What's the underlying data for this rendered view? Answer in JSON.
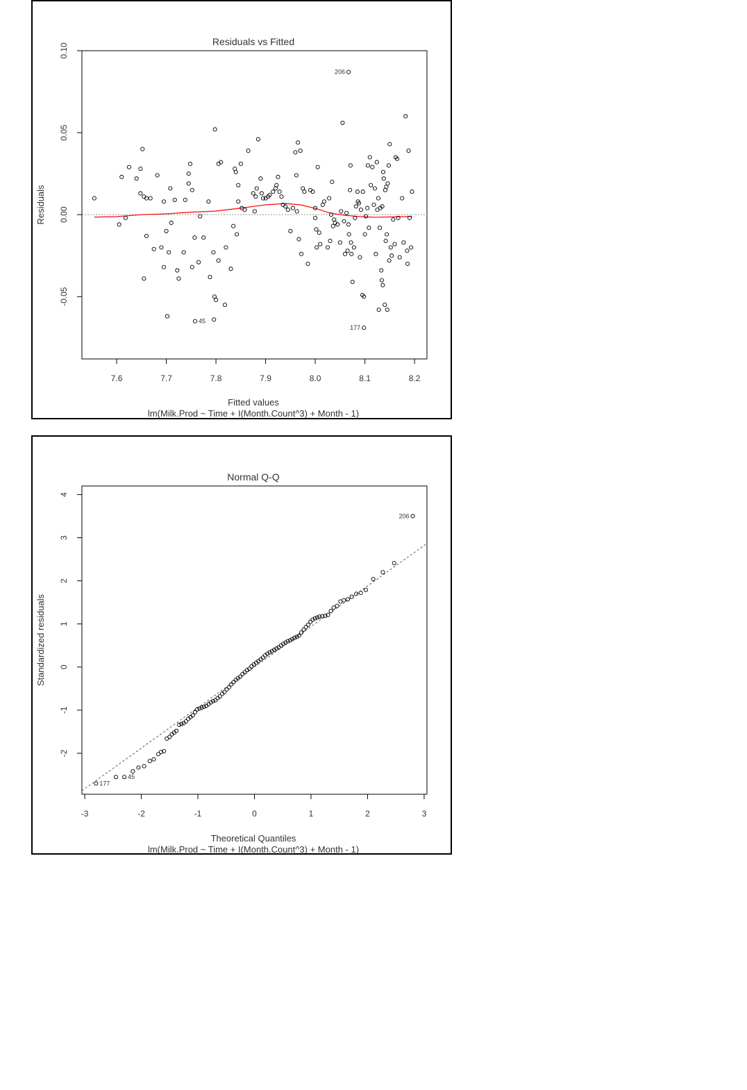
{
  "chart_data": [
    {
      "type": "scatter",
      "title": "Residuals vs Fitted",
      "xlabel": "Fitted values",
      "ylabel": "Residuals",
      "subtitle": "lm(Milk.Prod ~ Time + I(Month.Count^3) + Month - 1)",
      "xlim": [
        7.53,
        8.225
      ],
      "ylim": [
        -0.088,
        0.1
      ],
      "xticks": [
        7.6,
        7.7,
        7.8,
        7.9,
        8.0,
        8.1,
        8.2
      ],
      "xtick_labels": [
        "7.6",
        "7.7",
        "7.8",
        "7.9",
        "8.0",
        "8.1",
        "8.2"
      ],
      "yticks": [
        -0.05,
        0.0,
        0.05,
        0.1
      ],
      "ytick_labels": [
        "-0.05",
        "0.00",
        "0.05",
        "0.10"
      ],
      "reference_line": {
        "y": 0,
        "style": "dotted",
        "color": "#999999"
      },
      "smooth_color": "#ff0000",
      "point_color": "#000000",
      "points": [
        [
          7.555,
          0.01
        ],
        [
          7.605,
          -0.006
        ],
        [
          7.61,
          0.023
        ],
        [
          7.618,
          -0.002
        ],
        [
          7.625,
          0.029
        ],
        [
          7.64,
          0.022
        ],
        [
          7.648,
          0.028
        ],
        [
          7.648,
          0.013
        ],
        [
          7.652,
          0.04
        ],
        [
          7.655,
          0.011
        ],
        [
          7.655,
          -0.039
        ],
        [
          7.66,
          0.01
        ],
        [
          7.66,
          -0.013
        ],
        [
          7.668,
          0.01
        ],
        [
          7.675,
          -0.021
        ],
        [
          7.682,
          0.024
        ],
        [
          7.69,
          -0.02
        ],
        [
          7.695,
          0.008
        ],
        [
          7.695,
          -0.032
        ],
        [
          7.7,
          -0.01
        ],
        [
          7.702,
          -0.062
        ],
        [
          7.705,
          -0.023
        ],
        [
          7.708,
          0.016
        ],
        [
          7.71,
          -0.005
        ],
        [
          7.717,
          0.009
        ],
        [
          7.722,
          -0.034
        ],
        [
          7.725,
          -0.039
        ],
        [
          7.735,
          -0.023
        ],
        [
          7.738,
          0.009
        ],
        [
          7.745,
          0.019
        ],
        [
          7.745,
          0.025
        ],
        [
          7.748,
          0.031
        ],
        [
          7.752,
          0.015
        ],
        [
          7.752,
          -0.032
        ],
        [
          7.757,
          -0.014
        ],
        [
          7.758,
          -0.065
        ],
        [
          7.765,
          -0.029
        ],
        [
          7.768,
          -0.001
        ],
        [
          7.775,
          -0.014
        ],
        [
          7.785,
          0.008
        ],
        [
          7.788,
          -0.038
        ],
        [
          7.795,
          -0.023
        ],
        [
          7.796,
          -0.064
        ],
        [
          7.797,
          -0.05
        ],
        [
          7.798,
          0.052
        ],
        [
          7.8,
          -0.052
        ],
        [
          7.805,
          0.031
        ],
        [
          7.805,
          -0.028
        ],
        [
          7.81,
          0.032
        ],
        [
          7.818,
          -0.055
        ],
        [
          7.82,
          -0.02
        ],
        [
          7.83,
          -0.033
        ],
        [
          7.835,
          -0.007
        ],
        [
          7.838,
          0.028
        ],
        [
          7.84,
          0.026
        ],
        [
          7.842,
          -0.012
        ],
        [
          7.845,
          0.018
        ],
        [
          7.845,
          0.008
        ],
        [
          7.85,
          0.031
        ],
        [
          7.852,
          0.004
        ],
        [
          7.858,
          0.003
        ],
        [
          7.865,
          0.039
        ],
        [
          7.875,
          0.013
        ],
        [
          7.878,
          0.002
        ],
        [
          7.88,
          0.011
        ],
        [
          7.882,
          0.016
        ],
        [
          7.885,
          0.046
        ],
        [
          7.89,
          0.022
        ],
        [
          7.892,
          0.013
        ],
        [
          7.895,
          0.01
        ],
        [
          7.9,
          0.01
        ],
        [
          7.905,
          0.011
        ],
        [
          7.908,
          0.012
        ],
        [
          7.915,
          0.014
        ],
        [
          7.92,
          0.016
        ],
        [
          7.922,
          0.018
        ],
        [
          7.925,
          0.023
        ],
        [
          7.928,
          0.014
        ],
        [
          7.932,
          0.011
        ],
        [
          7.935,
          0.006
        ],
        [
          7.94,
          0.005
        ],
        [
          7.945,
          0.003
        ],
        [
          7.95,
          -0.01
        ],
        [
          7.955,
          0.004
        ],
        [
          7.96,
          0.038
        ],
        [
          7.962,
          0.024
        ],
        [
          7.963,
          0.002
        ],
        [
          7.965,
          0.044
        ],
        [
          7.967,
          -0.015
        ],
        [
          7.97,
          0.039
        ],
        [
          7.972,
          -0.024
        ],
        [
          7.975,
          0.016
        ],
        [
          7.978,
          0.014
        ],
        [
          7.985,
          -0.03
        ],
        [
          7.99,
          0.015
        ],
        [
          7.995,
          0.014
        ],
        [
          8.0,
          0.004
        ],
        [
          8.0,
          -0.002
        ],
        [
          8.002,
          -0.009
        ],
        [
          8.003,
          -0.02
        ],
        [
          8.005,
          0.029
        ],
        [
          8.008,
          -0.011
        ],
        [
          8.01,
          -0.018
        ],
        [
          8.015,
          0.006
        ],
        [
          8.018,
          0.008
        ],
        [
          8.025,
          -0.02
        ],
        [
          8.028,
          0.01
        ],
        [
          8.03,
          -0.016
        ],
        [
          8.032,
          0.0
        ],
        [
          8.034,
          0.02
        ],
        [
          8.036,
          -0.007
        ],
        [
          8.038,
          -0.003
        ],
        [
          8.04,
          -0.005
        ],
        [
          8.045,
          -0.006
        ],
        [
          8.05,
          -0.017
        ],
        [
          8.052,
          0.002
        ],
        [
          8.055,
          0.056
        ],
        [
          8.058,
          -0.004
        ],
        [
          8.06,
          -0.024
        ],
        [
          8.063,
          0.001
        ],
        [
          8.065,
          -0.022
        ],
        [
          8.067,
          -0.006
        ],
        [
          8.068,
          -0.012
        ],
        [
          8.07,
          0.015
        ],
        [
          8.071,
          0.03
        ],
        [
          8.072,
          -0.017
        ],
        [
          8.073,
          -0.024
        ],
        [
          8.075,
          -0.041
        ],
        [
          8.078,
          -0.02
        ],
        [
          8.08,
          -0.002
        ],
        [
          8.082,
          0.005
        ],
        [
          8.085,
          0.014
        ],
        [
          8.086,
          0.008
        ],
        [
          8.088,
          0.007
        ],
        [
          8.09,
          -0.026
        ],
        [
          8.092,
          0.003
        ],
        [
          8.095,
          -0.049
        ],
        [
          8.096,
          0.014
        ],
        [
          8.098,
          -0.05
        ],
        [
          8.1,
          -0.012
        ],
        [
          8.102,
          -0.001
        ],
        [
          8.105,
          0.004
        ],
        [
          8.106,
          0.03
        ],
        [
          8.108,
          -0.008
        ],
        [
          8.11,
          0.035
        ],
        [
          8.112,
          0.018
        ],
        [
          8.115,
          0.029
        ],
        [
          8.118,
          0.006
        ],
        [
          8.12,
          0.016
        ],
        [
          8.122,
          -0.024
        ],
        [
          8.124,
          0.032
        ],
        [
          8.125,
          0.003
        ],
        [
          8.127,
          0.01
        ],
        [
          8.128,
          -0.058
        ],
        [
          8.13,
          -0.008
        ],
        [
          8.131,
          0.004
        ],
        [
          8.133,
          -0.034
        ],
        [
          8.134,
          -0.04
        ],
        [
          8.135,
          0.005
        ],
        [
          8.136,
          -0.043
        ],
        [
          8.137,
          0.026
        ],
        [
          8.138,
          0.022
        ],
        [
          8.14,
          -0.055
        ],
        [
          8.141,
          0.015
        ],
        [
          8.142,
          -0.016
        ],
        [
          8.143,
          0.017
        ],
        [
          8.144,
          -0.012
        ],
        [
          8.145,
          -0.058
        ],
        [
          8.146,
          0.019
        ],
        [
          8.148,
          0.03
        ],
        [
          8.149,
          -0.028
        ],
        [
          8.15,
          0.043
        ],
        [
          8.152,
          -0.02
        ],
        [
          8.154,
          -0.025
        ],
        [
          8.157,
          -0.003
        ],
        [
          8.16,
          -0.018
        ],
        [
          8.162,
          0.035
        ],
        [
          8.165,
          0.034
        ],
        [
          8.167,
          -0.002
        ],
        [
          8.17,
          -0.026
        ],
        [
          8.175,
          0.01
        ],
        [
          8.178,
          -0.017
        ],
        [
          8.182,
          0.06
        ],
        [
          8.185,
          -0.022
        ],
        [
          8.186,
          -0.03
        ],
        [
          8.188,
          0.039
        ],
        [
          8.19,
          -0.002
        ],
        [
          8.193,
          -0.02
        ],
        [
          8.195,
          0.014
        ],
        [
          8.067,
          0.087
        ],
        [
          8.098,
          -0.069
        ]
      ],
      "smooth": [
        [
          7.555,
          -0.0015
        ],
        [
          7.6,
          -0.0012
        ],
        [
          7.65,
          0.0
        ],
        [
          7.7,
          0.0005
        ],
        [
          7.75,
          0.0015
        ],
        [
          7.8,
          0.0022
        ],
        [
          7.85,
          0.004
        ],
        [
          7.9,
          0.006
        ],
        [
          7.94,
          0.0068
        ],
        [
          7.97,
          0.006
        ],
        [
          8.0,
          0.0038
        ],
        [
          8.03,
          0.001
        ],
        [
          8.06,
          -0.0004
        ],
        [
          8.09,
          -0.0012
        ],
        [
          8.12,
          -0.0016
        ],
        [
          8.15,
          -0.0014
        ],
        [
          8.18,
          -0.0012
        ],
        [
          8.195,
          -0.001
        ]
      ],
      "labels": [
        {
          "text": "206",
          "x": 8.067,
          "y": 0.087,
          "side": "left"
        },
        {
          "text": "45",
          "x": 7.758,
          "y": -0.065,
          "side": "right"
        },
        {
          "text": "177",
          "x": 8.098,
          "y": -0.069,
          "side": "left"
        }
      ]
    },
    {
      "type": "scatter",
      "title": "Normal Q-Q",
      "xlabel": "Theoretical Quantiles",
      "ylabel": "Standardized residuals",
      "subtitle": "lm(Milk.Prod ~ Time + I(Month.Count^3) + Month - 1)",
      "xlim": [
        -3.05,
        3.05
      ],
      "ylim": [
        -2.95,
        4.2
      ],
      "xticks": [
        -3,
        -2,
        -1,
        0,
        1,
        2,
        3
      ],
      "xtick_labels": [
        "-3",
        "-2",
        "-1",
        "0",
        "1",
        "2",
        "3"
      ],
      "yticks": [
        -2,
        -1,
        0,
        1,
        2,
        3,
        4
      ],
      "ytick_labels": [
        "-2",
        "-1",
        "0",
        "1",
        "2",
        "3",
        "4"
      ],
      "reference_line": {
        "slope": 0.94,
        "intercept": 0.0,
        "style": "dashed",
        "color": "#555555"
      },
      "point_color": "#000000",
      "points": [
        [
          -2.8,
          -2.7
        ],
        [
          -2.45,
          -2.55
        ],
        [
          -2.3,
          -2.55
        ],
        [
          -2.15,
          -2.42
        ],
        [
          -2.05,
          -2.33
        ],
        [
          -1.95,
          -2.3
        ],
        [
          -1.85,
          -2.18
        ],
        [
          -1.78,
          -2.14
        ],
        [
          -1.7,
          -2.02
        ],
        [
          -1.65,
          -1.97
        ],
        [
          -1.6,
          -1.95
        ],
        [
          -1.55,
          -1.66
        ],
        [
          -1.5,
          -1.62
        ],
        [
          -1.46,
          -1.56
        ],
        [
          -1.42,
          -1.52
        ],
        [
          -1.38,
          -1.48
        ],
        [
          -1.33,
          -1.34
        ],
        [
          -1.29,
          -1.32
        ],
        [
          -1.25,
          -1.3
        ],
        [
          -1.21,
          -1.26
        ],
        [
          -1.17,
          -1.2
        ],
        [
          -1.13,
          -1.16
        ],
        [
          -1.09,
          -1.12
        ],
        [
          -1.05,
          -1.05
        ],
        [
          -1.01,
          -0.98
        ],
        [
          -0.97,
          -0.96
        ],
        [
          -0.93,
          -0.94
        ],
        [
          -0.89,
          -0.92
        ],
        [
          -0.85,
          -0.9
        ],
        [
          -0.81,
          -0.86
        ],
        [
          -0.77,
          -0.82
        ],
        [
          -0.73,
          -0.79
        ],
        [
          -0.69,
          -0.77
        ],
        [
          -0.65,
          -0.72
        ],
        [
          -0.61,
          -0.68
        ],
        [
          -0.57,
          -0.62
        ],
        [
          -0.53,
          -0.58
        ],
        [
          -0.49,
          -0.52
        ],
        [
          -0.45,
          -0.47
        ],
        [
          -0.41,
          -0.4
        ],
        [
          -0.37,
          -0.35
        ],
        [
          -0.33,
          -0.3
        ],
        [
          -0.29,
          -0.26
        ],
        [
          -0.25,
          -0.22
        ],
        [
          -0.21,
          -0.16
        ],
        [
          -0.17,
          -0.12
        ],
        [
          -0.13,
          -0.07
        ],
        [
          -0.09,
          -0.04
        ],
        [
          -0.05,
          0.02
        ],
        [
          -0.01,
          0.06
        ],
        [
          0.03,
          0.1
        ],
        [
          0.07,
          0.14
        ],
        [
          0.11,
          0.18
        ],
        [
          0.15,
          0.22
        ],
        [
          0.19,
          0.27
        ],
        [
          0.23,
          0.31
        ],
        [
          0.27,
          0.34
        ],
        [
          0.31,
          0.37
        ],
        [
          0.35,
          0.4
        ],
        [
          0.39,
          0.43
        ],
        [
          0.43,
          0.46
        ],
        [
          0.47,
          0.5
        ],
        [
          0.51,
          0.54
        ],
        [
          0.55,
          0.57
        ],
        [
          0.59,
          0.6
        ],
        [
          0.63,
          0.62
        ],
        [
          0.67,
          0.65
        ],
        [
          0.71,
          0.68
        ],
        [
          0.75,
          0.7
        ],
        [
          0.79,
          0.73
        ],
        [
          0.83,
          0.8
        ],
        [
          0.87,
          0.87
        ],
        [
          0.91,
          0.93
        ],
        [
          0.95,
          0.98
        ],
        [
          0.99,
          1.05
        ],
        [
          1.03,
          1.1
        ],
        [
          1.07,
          1.13
        ],
        [
          1.11,
          1.15
        ],
        [
          1.15,
          1.17
        ],
        [
          1.2,
          1.18
        ],
        [
          1.25,
          1.19
        ],
        [
          1.3,
          1.21
        ],
        [
          1.35,
          1.3
        ],
        [
          1.4,
          1.38
        ],
        [
          1.46,
          1.42
        ],
        [
          1.52,
          1.52
        ],
        [
          1.58,
          1.55
        ],
        [
          1.65,
          1.57
        ],
        [
          1.72,
          1.63
        ],
        [
          1.8,
          1.7
        ],
        [
          1.88,
          1.72
        ],
        [
          1.97,
          1.79
        ],
        [
          2.1,
          2.04
        ],
        [
          2.27,
          2.2
        ],
        [
          2.47,
          2.41
        ],
        [
          2.8,
          3.5
        ]
      ],
      "labels": [
        {
          "text": "206",
          "x": 2.8,
          "y": 3.5,
          "side": "left"
        },
        {
          "text": "45",
          "x": -2.3,
          "y": -2.55,
          "side": "right"
        },
        {
          "text": "177",
          "x": -2.8,
          "y": -2.7,
          "side": "right"
        }
      ]
    }
  ]
}
